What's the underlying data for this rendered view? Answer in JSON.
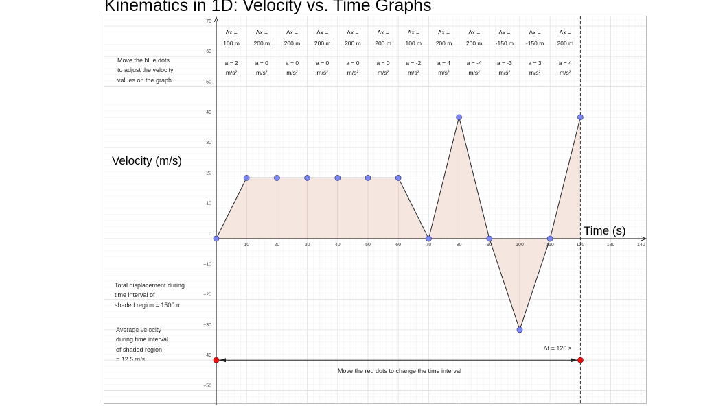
{
  "title": "Kinematics in 1D: Velocity vs. Time Graphs",
  "instructions": [
    "Move the blue dots",
    "to adjust the velocity",
    "values on the graph."
  ],
  "displacement_note": [
    "Total displacement during",
    "time interval of",
    "shaded region = 1500 m"
  ],
  "average_velocity_note": [
    "Average velocity",
    "during time interval",
    "of shaded region",
    "= 12.5 m/s"
  ],
  "red_dots_note": "Move the red dots to change the time interval",
  "delta_t_label": "Δt = 120 s",
  "chart_data": {
    "type": "line",
    "title": "Kinematics in 1D: Velocity vs. Time Graphs",
    "ylabel": "Velocity (m/s)",
    "xlabel": "Time (s)",
    "xlim": [
      0,
      140
    ],
    "ylim": [
      -50,
      70
    ],
    "x_ticks": [
      10,
      20,
      30,
      40,
      50,
      60,
      70,
      80,
      90,
      100,
      110,
      120,
      130,
      140
    ],
    "y_ticks": [
      70,
      60,
      50,
      40,
      30,
      20,
      10,
      0,
      -10,
      -20,
      -30,
      -40,
      -50
    ],
    "grid": true,
    "series": [
      {
        "name": "velocity",
        "x": [
          0,
          10,
          20,
          30,
          40,
          50,
          60,
          70,
          80,
          90,
          100,
          110,
          120
        ],
        "y": [
          0,
          20,
          20,
          20,
          20,
          20,
          20,
          0,
          40,
          0,
          -30,
          0,
          40
        ]
      }
    ],
    "shaded_interval": [
      0,
      120
    ],
    "time_handles": [
      0,
      120
    ],
    "handle_level": -40,
    "segment_labels": [
      {
        "dx1": "Δx =",
        "dx2": "100 m",
        "a1": "a = 2",
        "a2": "m/s²"
      },
      {
        "dx1": "Δx =",
        "dx2": "200 m",
        "a1": "a = 0",
        "a2": "m/s²"
      },
      {
        "dx1": "Δx =",
        "dx2": "200 m",
        "a1": "a = 0",
        "a2": "m/s²"
      },
      {
        "dx1": "Δx =",
        "dx2": "200 m",
        "a1": "a = 0",
        "a2": "m/s²"
      },
      {
        "dx1": "Δx =",
        "dx2": "200 m",
        "a1": "a = 0",
        "a2": "m/s²"
      },
      {
        "dx1": "Δx =",
        "dx2": "200 m",
        "a1": "a = 0",
        "a2": "m/s²"
      },
      {
        "dx1": "Δx =",
        "dx2": "100 m",
        "a1": "a = -2",
        "a2": "m/s²"
      },
      {
        "dx1": "Δx =",
        "dx2": "200 m",
        "a1": "a = 4",
        "a2": "m/s²"
      },
      {
        "dx1": "Δx =",
        "dx2": "200 m",
        "a1": "a = -4",
        "a2": "m/s²"
      },
      {
        "dx1": "Δx =",
        "dx2": "-150 m",
        "a1": "a = -3",
        "a2": "m/s²"
      },
      {
        "dx1": "Δx =",
        "dx2": "-150 m",
        "a1": "a = 3",
        "a2": "m/s²"
      },
      {
        "dx1": "Δx =",
        "dx2": "200 m",
        "a1": "a = 4",
        "a2": "m/s²"
      }
    ]
  },
  "colors": {
    "fill": "#f5e6e0",
    "grid": "#e4e4e4",
    "velocity_dot": "#7b86ee",
    "time_dot": "#ee1111",
    "line": "#222222"
  }
}
